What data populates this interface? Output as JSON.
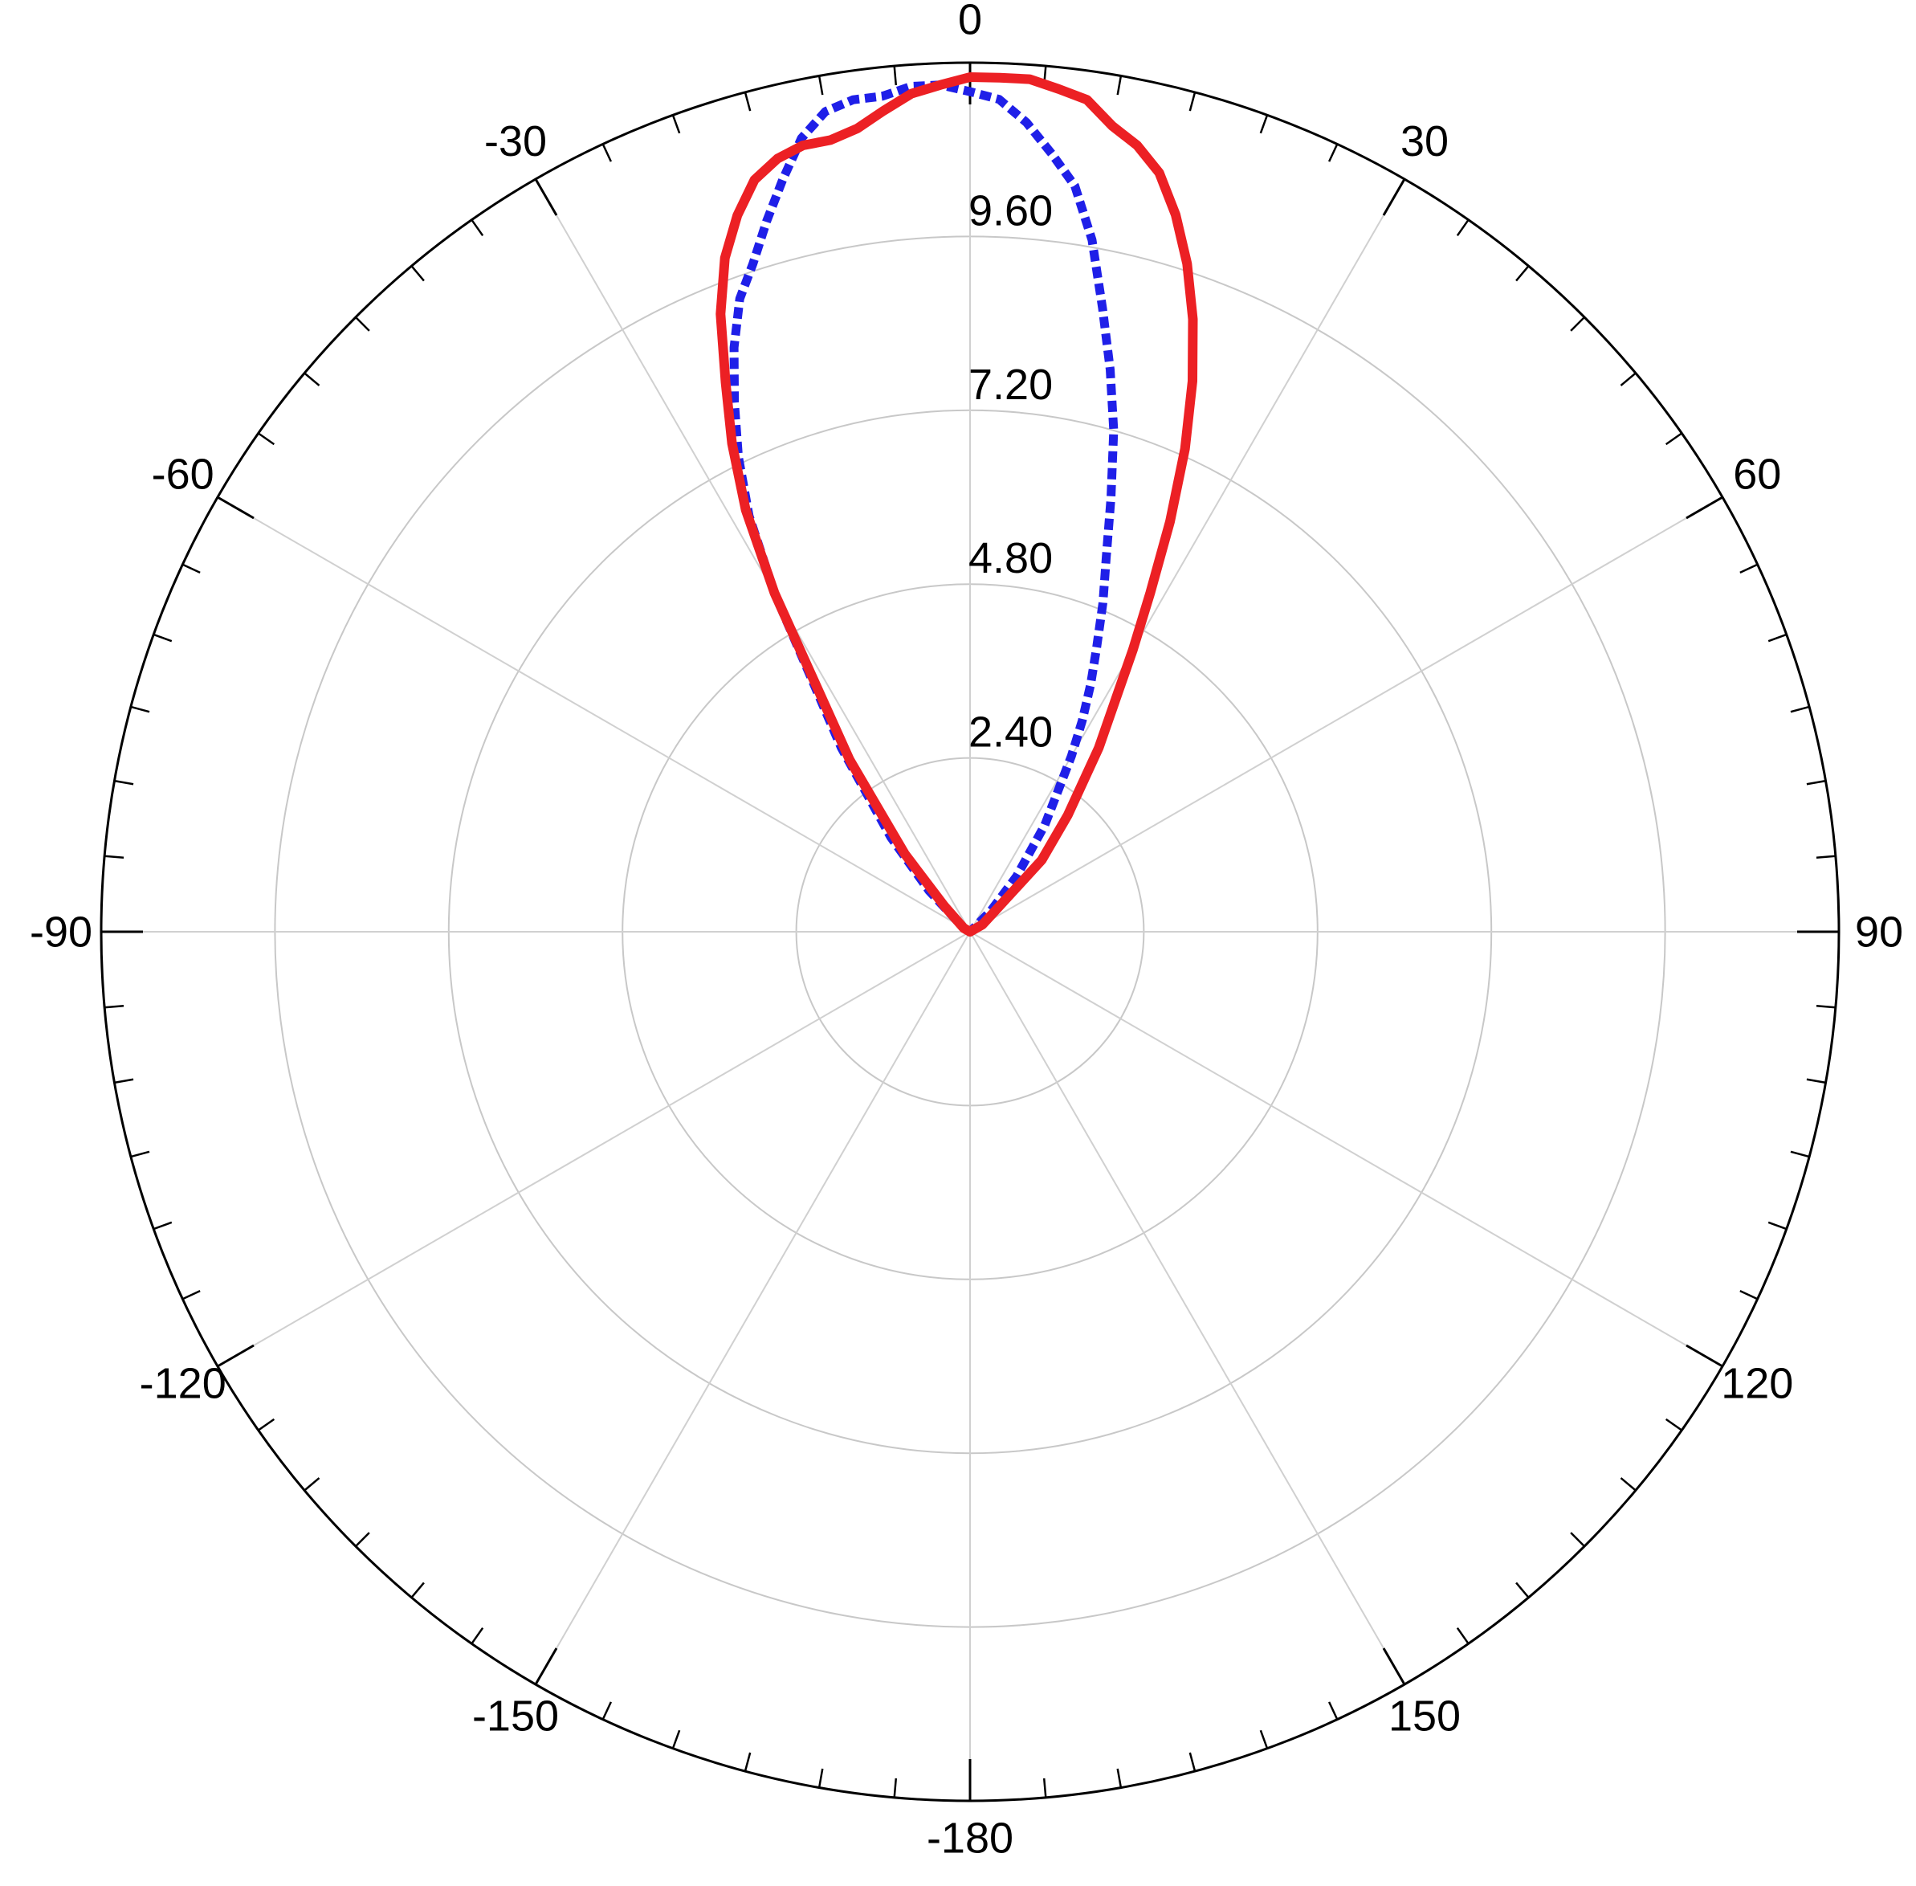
{
  "chart_data": {
    "type": "polar-line",
    "title": "",
    "angle_unit": "degrees",
    "angle_zero": "top",
    "angle_direction": "clockwise",
    "radial_range": [
      0,
      12
    ],
    "radial_ticks": [
      "2.40",
      "4.80",
      "7.20",
      "9.60"
    ],
    "angular_ticks": [
      "0",
      "30",
      "60",
      "90",
      "120",
      "150",
      "-180",
      "-150",
      "-120",
      "-90",
      "-60",
      "-30"
    ],
    "grid": true,
    "series": [
      {
        "style": "dashed",
        "color": "#1f1fe8",
        "theta": [
          -90,
          -60,
          -45,
          -40,
          -35,
          -30,
          -28,
          -26,
          -24,
          -22,
          -20,
          -18,
          -16,
          -14,
          -12,
          -10,
          -8,
          -6,
          -4,
          -2,
          0,
          2,
          4,
          6,
          8,
          10,
          12,
          14,
          16,
          18,
          20,
          22,
          24,
          26,
          28,
          30,
          35,
          40,
          45,
          60,
          90
        ],
        "r": [
          0,
          0.1,
          0.8,
          1.7,
          3.1,
          5.4,
          6.5,
          7.3,
          8.0,
          8.7,
          9.3,
          9.7,
          10.2,
          10.7,
          11.2,
          11.5,
          11.6,
          11.6,
          11.7,
          11.7,
          11.6,
          11.5,
          11.2,
          10.8,
          10.4,
          9.7,
          8.8,
          8.0,
          7.2,
          6.3,
          5.5,
          4.9,
          4.3,
          3.8,
          3.3,
          2.8,
          1.8,
          1.0,
          0.4,
          0,
          0
        ]
      },
      {
        "style": "solid",
        "color": "#ec2024",
        "theta": [
          -90,
          -60,
          -45,
          -40,
          -35,
          -30,
          -28,
          -26,
          -24,
          -22,
          -20,
          -18,
          -16,
          -14,
          -12,
          -10,
          -8,
          -6,
          -4,
          -2,
          0,
          2,
          4,
          6,
          8,
          10,
          12,
          14,
          16,
          18,
          20,
          22,
          24,
          26,
          28,
          30,
          35,
          40,
          45,
          60,
          90
        ],
        "r": [
          0,
          0.1,
          0.5,
          1.4,
          2.9,
          5.4,
          6.6,
          7.5,
          8.3,
          9.2,
          9.9,
          10.4,
          10.8,
          11.0,
          11.1,
          11.1,
          11.2,
          11.4,
          11.6,
          11.7,
          11.8,
          11.8,
          11.8,
          11.7,
          11.6,
          11.3,
          11.1,
          10.8,
          10.3,
          9.7,
          9.0,
          8.2,
          7.3,
          6.3,
          5.3,
          4.5,
          3.1,
          2.1,
          1.4,
          0.2,
          0
        ]
      }
    ]
  }
}
